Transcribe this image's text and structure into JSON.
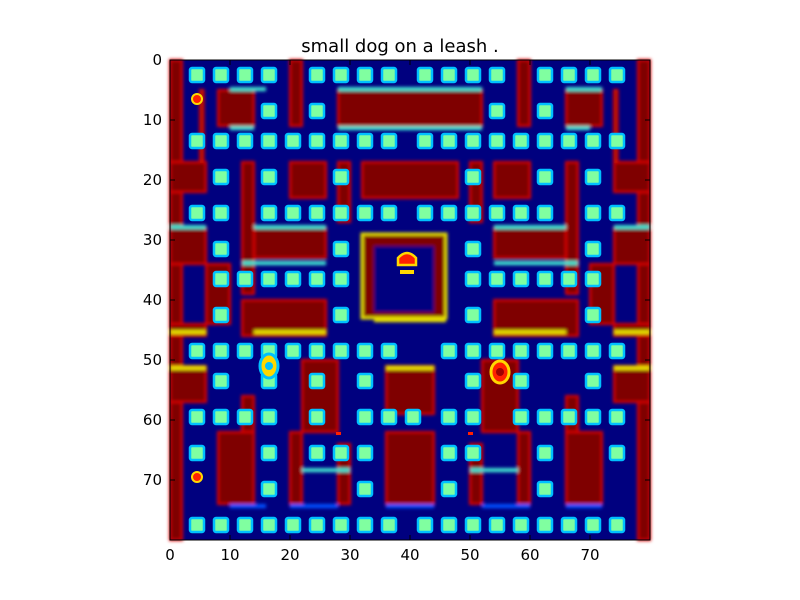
{
  "title": "small dog on a leash .",
  "axes": {
    "x_ticks": [
      "0",
      "10",
      "20",
      "30",
      "40",
      "50",
      "60",
      "70"
    ],
    "y_ticks": [
      "0",
      "10",
      "20",
      "30",
      "40",
      "50",
      "60",
      "70"
    ],
    "x_range": [
      0,
      80
    ],
    "y_range": [
      0,
      80
    ],
    "y_inverted": true
  },
  "game": {
    "type": "pacman-maze-heatmap",
    "colormap": "jet",
    "colors": {
      "background": "#00007f",
      "wall": "#7f0000",
      "wall_edge_hot": "#e01000",
      "wall_edge_yellow": "#e8e000",
      "wall_edge_cyan": "#40e0d0",
      "wall_edge_blue": "#0050ff",
      "pellet": "#80ffa0",
      "pellet_ring": "#00c0ff",
      "ghost_body": "#ff2000",
      "ghost_eye": "#ffd800"
    }
  }
}
